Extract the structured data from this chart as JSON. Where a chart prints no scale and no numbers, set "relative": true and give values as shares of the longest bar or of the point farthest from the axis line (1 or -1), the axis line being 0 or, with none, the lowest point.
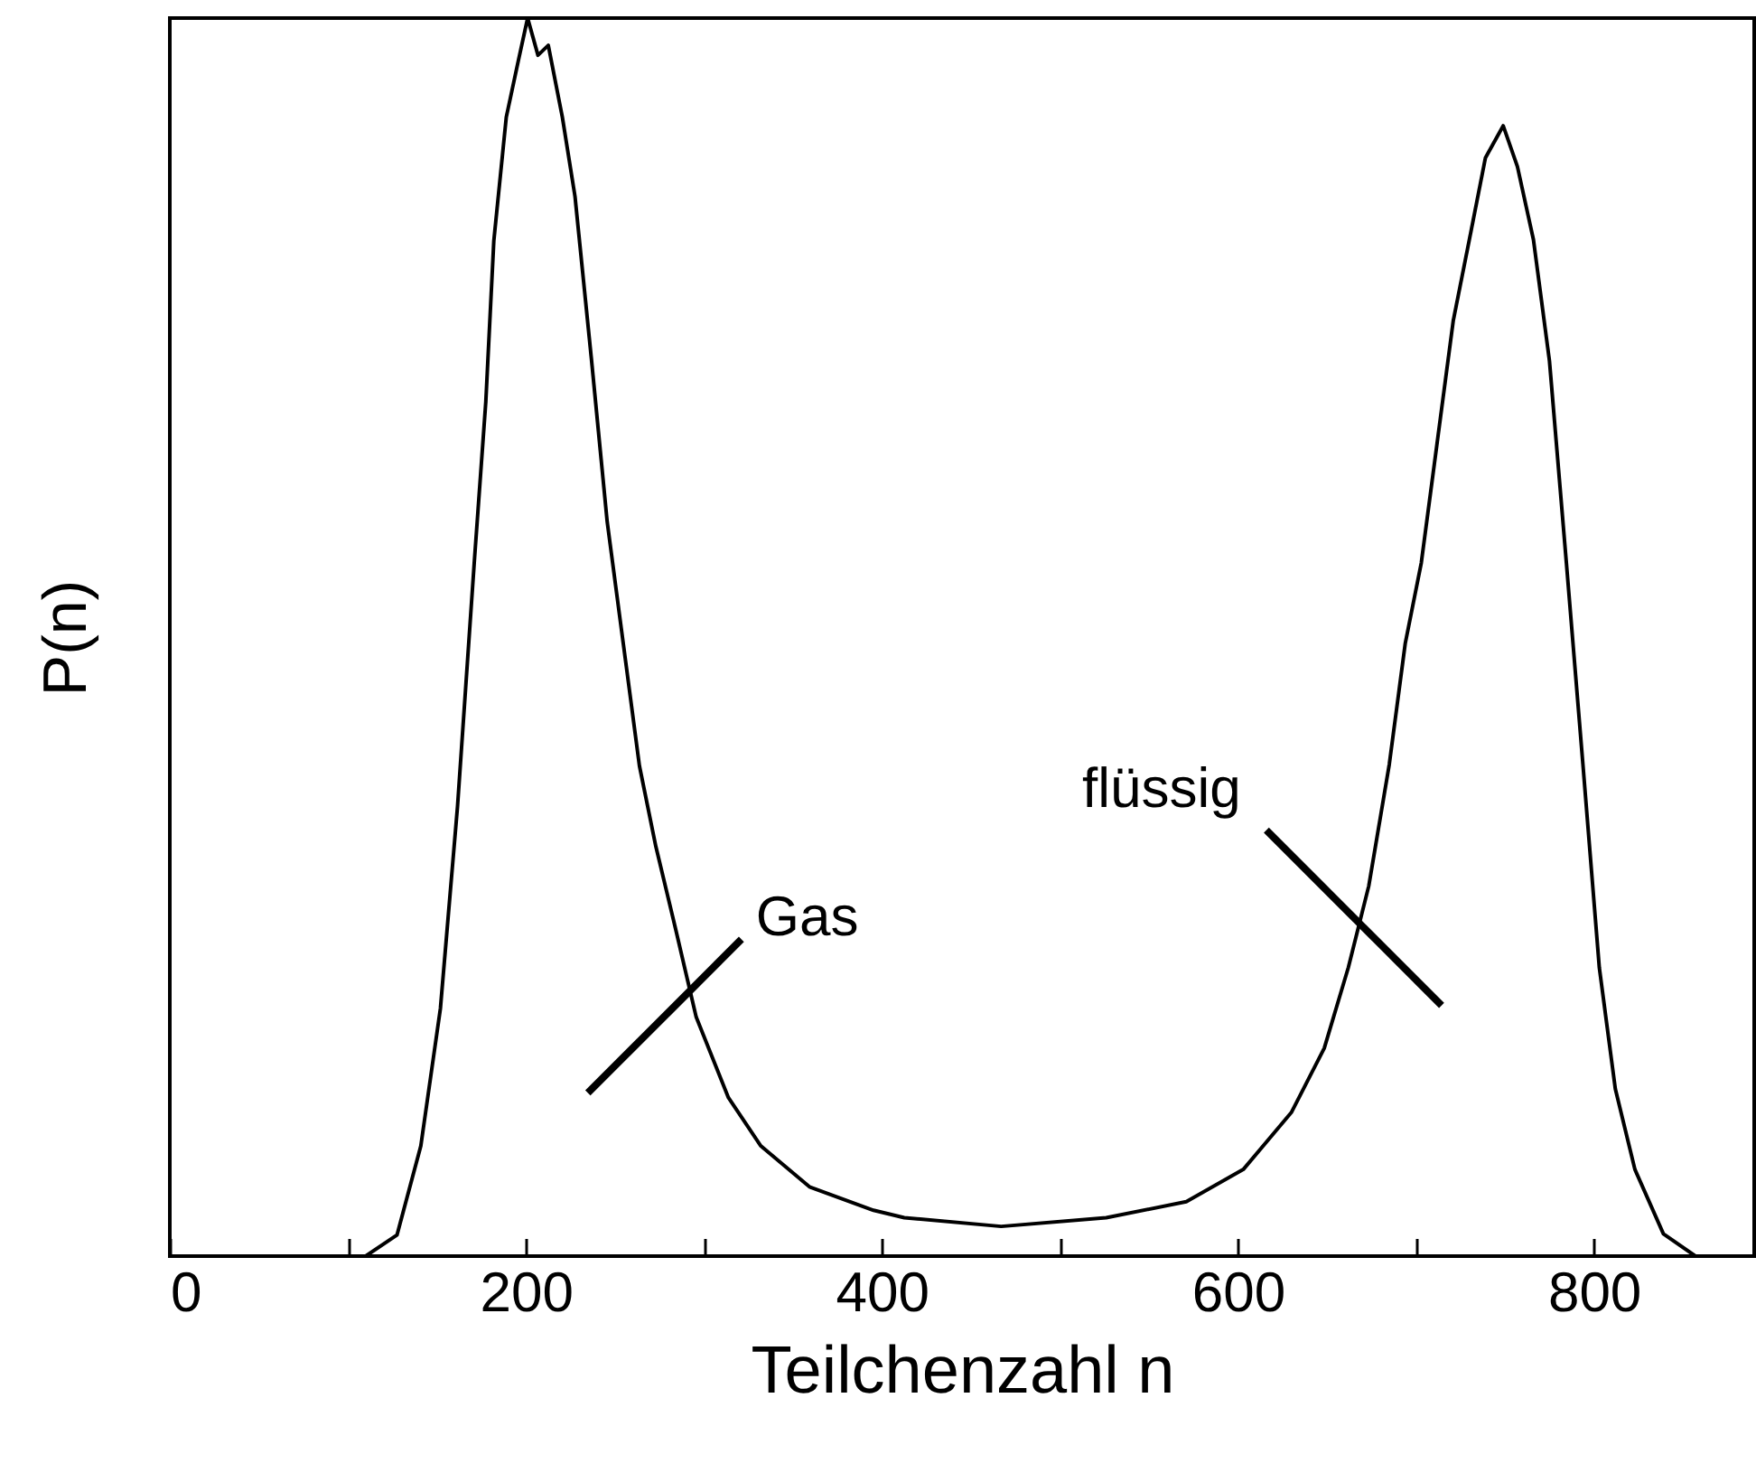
{
  "chart_data": {
    "type": "line",
    "xlabel": "Teilchenzahl n",
    "ylabel": "P(n)",
    "relative": true,
    "xlim": [
      0,
      890
    ],
    "xticks": [
      0,
      {
        "value": 100,
        "label": null
      },
      200,
      {
        "value": 300,
        "label": null
      },
      400,
      {
        "value": 500,
        "label": null
      },
      600,
      {
        "value": 700,
        "label": null
      },
      800
    ],
    "annotations": [
      {
        "text": "Gas",
        "x": 288.6,
        "y": 0.215
      },
      {
        "text": "flüssig",
        "x": 666.7,
        "y": 0.274
      }
    ],
    "series": [
      {
        "color": "#000000",
        "x": [
          110,
          127.6,
          141,
          152,
          161.6,
          171,
          177.5,
          182,
          189,
          195.7,
          201,
          206.8,
          212.6,
          220.5,
          227.6,
          236.8,
          245.7,
          254.8,
          263.8,
          273,
          284,
          295.7,
          313.8,
          332,
          359.3,
          395.3,
          412.6,
          467,
          526,
          571,
          603,
          630,
          648.5,
          662,
          673.5,
          685,
          694,
          703,
          712,
          721,
          730,
          739,
          749,
          757,
          766,
          775,
          784.5,
          793.8,
          803,
          812,
          823,
          839,
          857
        ],
        "values": [
          0,
          0.017,
          0.089,
          0.2,
          0.363,
          0.56,
          0.69,
          0.82,
          0.92,
          0.965,
          1,
          0.97,
          0.978,
          0.92,
          0.856,
          0.725,
          0.593,
          0.494,
          0.396,
          0.331,
          0.265,
          0.193,
          0.128,
          0.089,
          0.056,
          0.037,
          0.031,
          0.024,
          0.031,
          0.044,
          0.07,
          0.116,
          0.168,
          0.233,
          0.299,
          0.397,
          0.495,
          0.56,
          0.658,
          0.756,
          0.821,
          0.887,
          0.913,
          0.88,
          0.821,
          0.723,
          0.56,
          0.397,
          0.233,
          0.135,
          0.07,
          0.018,
          0
        ]
      }
    ]
  }
}
